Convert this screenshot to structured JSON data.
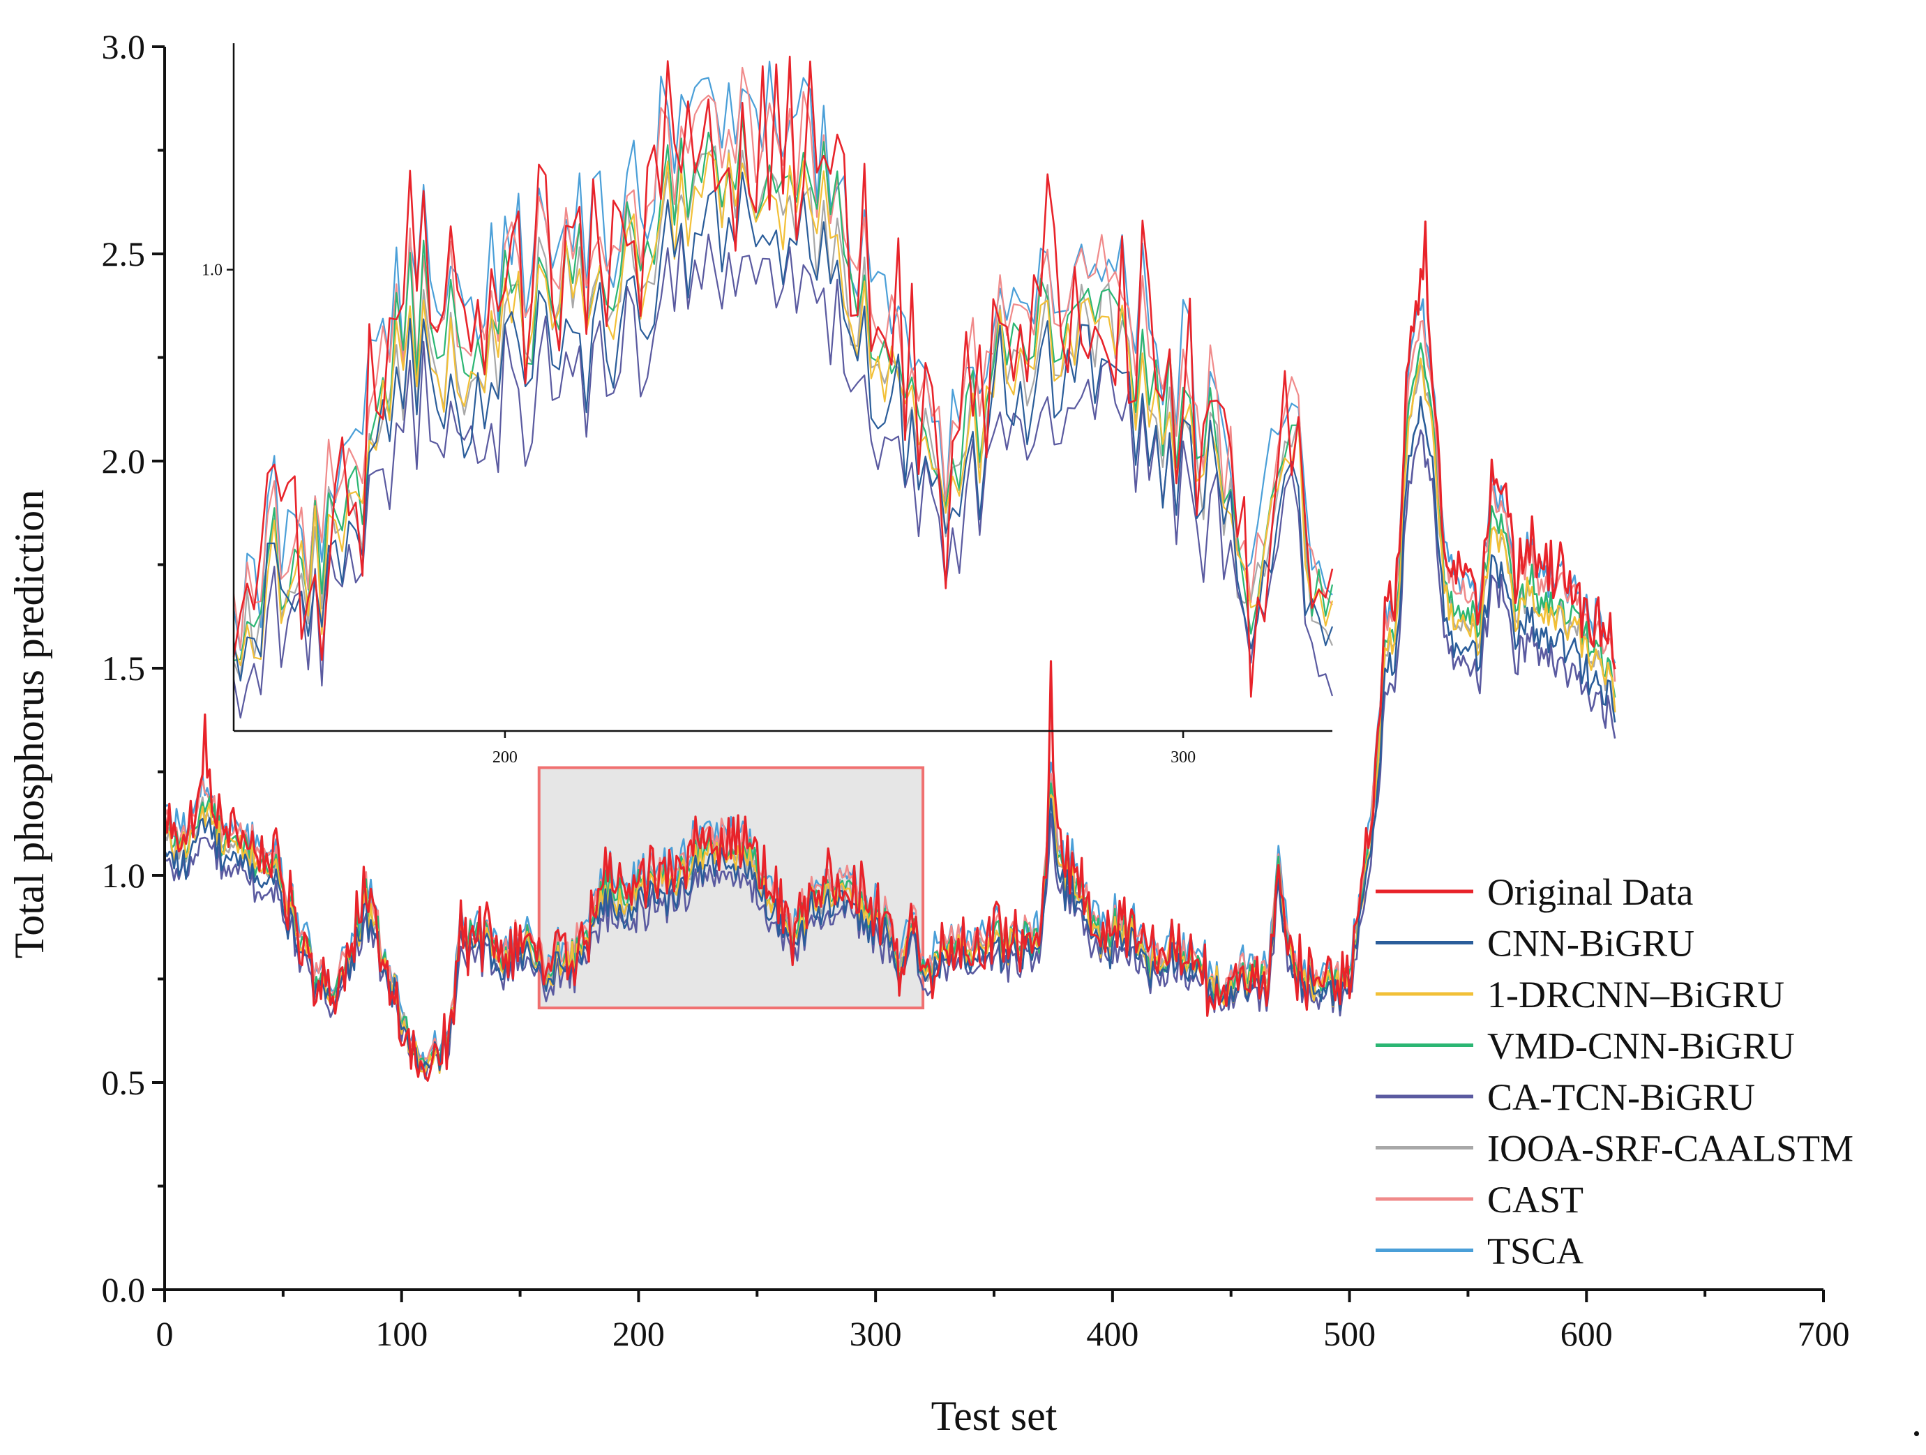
{
  "chart_data": {
    "type": "line",
    "xlabel": "Test set",
    "ylabel": "Total phosphorus  prediction",
    "xlim": [
      0,
      700
    ],
    "ylim": [
      0.0,
      3.0
    ],
    "x_ticks": [
      0,
      100,
      200,
      300,
      400,
      500,
      600,
      700
    ],
    "x_tick_labels": [
      "0",
      "100",
      "200",
      "300",
      "400",
      "500",
      "600",
      "700"
    ],
    "y_ticks": [
      0.0,
      0.5,
      1.0,
      1.5,
      2.0,
      2.5,
      3.0
    ],
    "y_tick_labels": [
      "0.0",
      "0.5",
      "1.0",
      "1.5",
      "2.0",
      "2.5",
      "3.0"
    ],
    "legend_position": "lower-right",
    "trailing_mark": ".",
    "series": [
      {
        "name": "Original Data",
        "color": "#e8232a",
        "offset": 0.0,
        "amp": 1.0,
        "noise": 0.06
      },
      {
        "name": "CNN-BiGRU",
        "color": "#2a5d9a",
        "offset": -0.04,
        "amp": 0.85,
        "noise": 0.02
      },
      {
        "name": "1-DRCNN–BiGRU",
        "color": "#f2c037",
        "offset": -0.02,
        "amp": 0.9,
        "noise": 0.02
      },
      {
        "name": "VMD-CNN-BiGRU",
        "color": "#2bb673",
        "offset": -0.01,
        "amp": 0.92,
        "noise": 0.02
      },
      {
        "name": "CA-TCN-BiGRU",
        "color": "#5a5aa0",
        "offset": -0.06,
        "amp": 0.82,
        "noise": 0.02
      },
      {
        "name": "IOOA-SRF-CAALSTM",
        "color": "#a8a8a8",
        "offset": -0.02,
        "amp": 0.9,
        "noise": 0.02
      },
      {
        "name": "CAST",
        "color": "#f08a8a",
        "offset": 0.01,
        "amp": 0.95,
        "noise": 0.02
      },
      {
        "name": "TSCA",
        "color": "#4a9fd8",
        "offset": 0.02,
        "amp": 0.97,
        "noise": 0.03
      }
    ],
    "base_keypoints": {
      "x": [
        0,
        10,
        17,
        25,
        35,
        45,
        55,
        65,
        75,
        85,
        95,
        105,
        110,
        115,
        120,
        125,
        135,
        145,
        155,
        160,
        165,
        175,
        185,
        195,
        205,
        215,
        225,
        235,
        245,
        255,
        265,
        275,
        285,
        295,
        305,
        310,
        315,
        320,
        330,
        340,
        350,
        360,
        370,
        374,
        378,
        385,
        395,
        405,
        415,
        425,
        435,
        445,
        455,
        465,
        470,
        475,
        485,
        495,
        500,
        505,
        510,
        515,
        520,
        525,
        530,
        535,
        540,
        545,
        550,
        555,
        560,
        565,
        570,
        575,
        580,
        590,
        600,
        610,
        612
      ],
      "y": [
        1.12,
        1.1,
        1.22,
        1.1,
        1.08,
        1.05,
        0.9,
        0.72,
        0.76,
        0.95,
        0.75,
        0.55,
        0.5,
        0.55,
        0.6,
        0.85,
        0.85,
        0.82,
        0.85,
        0.76,
        0.8,
        0.82,
        0.98,
        0.97,
        1.0,
        1.02,
        1.08,
        1.1,
        1.08,
        0.98,
        0.88,
        0.98,
        0.97,
        0.95,
        0.88,
        0.75,
        0.92,
        0.78,
        0.82,
        0.84,
        0.85,
        0.84,
        0.86,
        1.25,
        1.05,
        1.0,
        0.85,
        0.9,
        0.78,
        0.83,
        0.78,
        0.73,
        0.75,
        0.76,
        1.03,
        0.8,
        0.75,
        0.72,
        0.75,
        0.95,
        1.2,
        1.6,
        1.7,
        2.25,
        2.45,
        2.2,
        1.8,
        1.72,
        1.7,
        1.68,
        1.95,
        1.92,
        1.72,
        1.8,
        1.75,
        1.72,
        1.65,
        1.58,
        1.52
      ]
    },
    "inset": {
      "x_range": [
        160,
        322
      ],
      "x_ticks": [
        200,
        300
      ],
      "x_tick_labels": [
        "200",
        "300"
      ],
      "y_tick_label": "1.0",
      "y_tick_value": 1.0
    },
    "highlight_region": {
      "x_range": [
        158,
        320
      ],
      "y_range": [
        0.68,
        1.26
      ]
    }
  }
}
